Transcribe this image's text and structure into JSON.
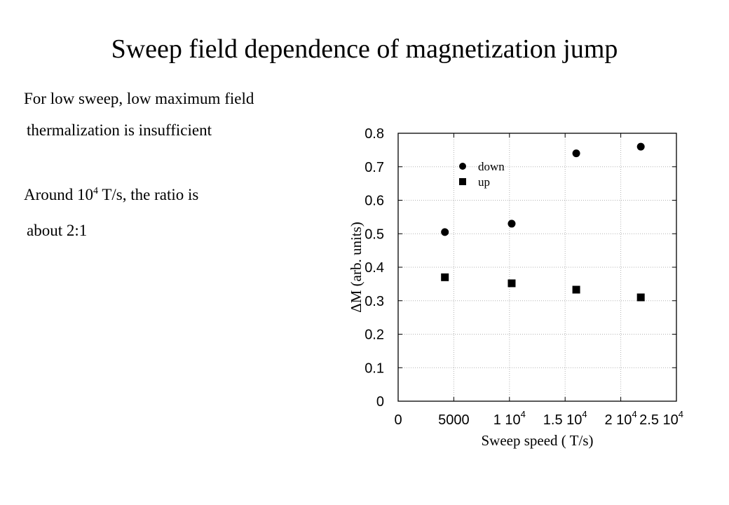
{
  "slide": {
    "title": "Sweep field dependence of magnetization jump",
    "lines": [
      {
        "text": "For low sweep, low maximum  field"
      },
      {
        "text": "thermalization is insufficient"
      },
      {
        "pre": "Around 10",
        "sup": "4",
        "post": " T/s, the ratio is"
      },
      {
        "text": "about 2:1"
      }
    ]
  },
  "chart_data": {
    "type": "scatter",
    "xlabel": "Sweep speed ( T/s)",
    "ylabel": "ΔM (arb. units)",
    "xlim": [
      0,
      25000
    ],
    "ylim": [
      0,
      0.8
    ],
    "x_ticks": [
      {
        "value": 0,
        "label": "0",
        "sup": ""
      },
      {
        "value": 5000,
        "label": "5000",
        "sup": ""
      },
      {
        "value": 10000,
        "label": "1 10",
        "sup": "4"
      },
      {
        "value": 15000,
        "label": "1.5 10",
        "sup": "4"
      },
      {
        "value": 20000,
        "label": "2 10",
        "sup": "4"
      },
      {
        "value": 25000,
        "label": "2.5 10",
        "sup": "4"
      }
    ],
    "y_ticks": [
      {
        "value": 0,
        "label": "0"
      },
      {
        "value": 0.1,
        "label": "0.1"
      },
      {
        "value": 0.2,
        "label": "0.2"
      },
      {
        "value": 0.3,
        "label": "0.3"
      },
      {
        "value": 0.4,
        "label": "0.4"
      },
      {
        "value": 0.5,
        "label": "0.5"
      },
      {
        "value": 0.6,
        "label": "0.6"
      },
      {
        "value": 0.7,
        "label": "0.7"
      },
      {
        "value": 0.8,
        "label": "0.8"
      }
    ],
    "grid": true,
    "legend_position": "top-left",
    "series": [
      {
        "name": "down",
        "marker": "circle",
        "x": [
          4200,
          10200,
          16000,
          21800
        ],
        "y": [
          0.505,
          0.53,
          0.74,
          0.76
        ]
      },
      {
        "name": "up",
        "marker": "square",
        "x": [
          4200,
          10200,
          16000,
          21800
        ],
        "y": [
          0.37,
          0.352,
          0.333,
          0.31
        ]
      }
    ]
  }
}
